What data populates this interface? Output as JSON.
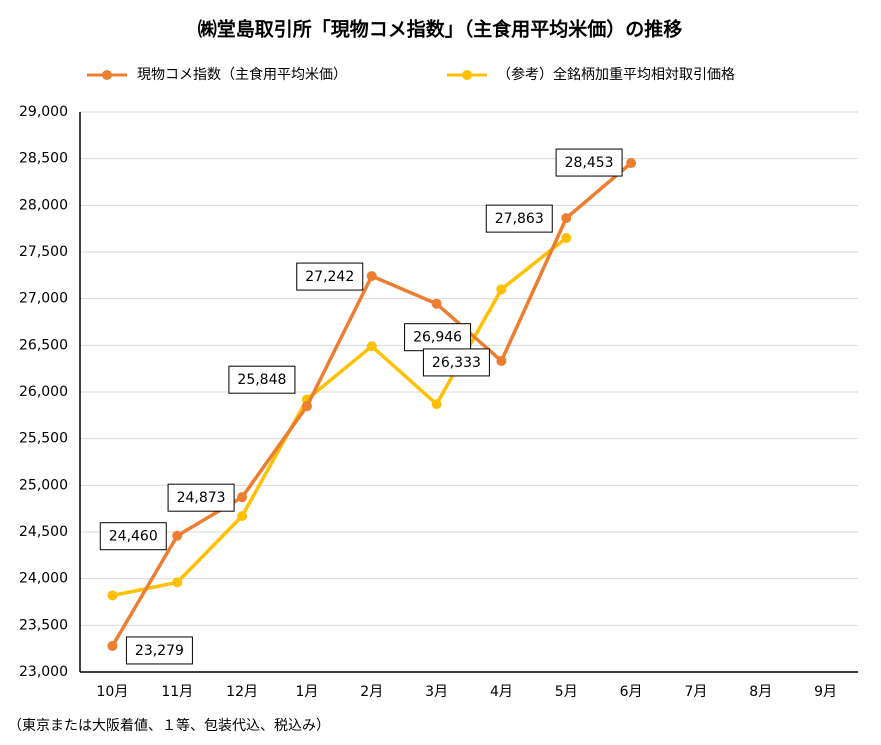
{
  "chart_data": {
    "type": "line",
    "title": "㈱堂島取引所「現物コメ指数」（主食用平均米価）の推移",
    "footnote": "（東京または大阪着値、１等、包装代込、税込み）",
    "categories": [
      "10月",
      "11月",
      "12月",
      "1月",
      "2月",
      "3月",
      "4月",
      "5月",
      "6月",
      "7月",
      "8月",
      "9月"
    ],
    "series": [
      {
        "name": "現物コメ指数（主食用平均米価）",
        "color": "#ed7d31",
        "values": [
          23279,
          24460,
          24873,
          25848,
          27242,
          26946,
          26333,
          27863,
          28453,
          null,
          null,
          null
        ],
        "value_labels": [
          "23,279",
          "24,460",
          "24,873",
          "25,848",
          "27,242",
          "26,946",
          "26,333",
          "27,863",
          "28,453",
          null,
          null,
          null
        ]
      },
      {
        "name": "（参考）全銘柄加重平均相対取引価格",
        "color": "#ffc000",
        "values": [
          23820,
          23960,
          24670,
          25920,
          26490,
          25870,
          27100,
          27650,
          null,
          null,
          null,
          null
        ]
      }
    ],
    "ylim": [
      23000,
      29000
    ],
    "yticks": [
      {
        "value": 23000,
        "label": "23,000"
      },
      {
        "value": 23500,
        "label": "23,500"
      },
      {
        "value": 24000,
        "label": "24,000"
      },
      {
        "value": 24500,
        "label": "24,500"
      },
      {
        "value": 25000,
        "label": "25,000"
      },
      {
        "value": 25500,
        "label": "25,500"
      },
      {
        "value": 26000,
        "label": "26,000"
      },
      {
        "value": 26500,
        "label": "26,500"
      },
      {
        "value": 27000,
        "label": "27,000"
      },
      {
        "value": 27500,
        "label": "27,500"
      },
      {
        "value": 28000,
        "label": "28,000"
      },
      {
        "value": 28500,
        "label": "28,500"
      },
      {
        "value": 29000,
        "label": "29,000"
      }
    ],
    "grid": true,
    "legend": "top"
  }
}
